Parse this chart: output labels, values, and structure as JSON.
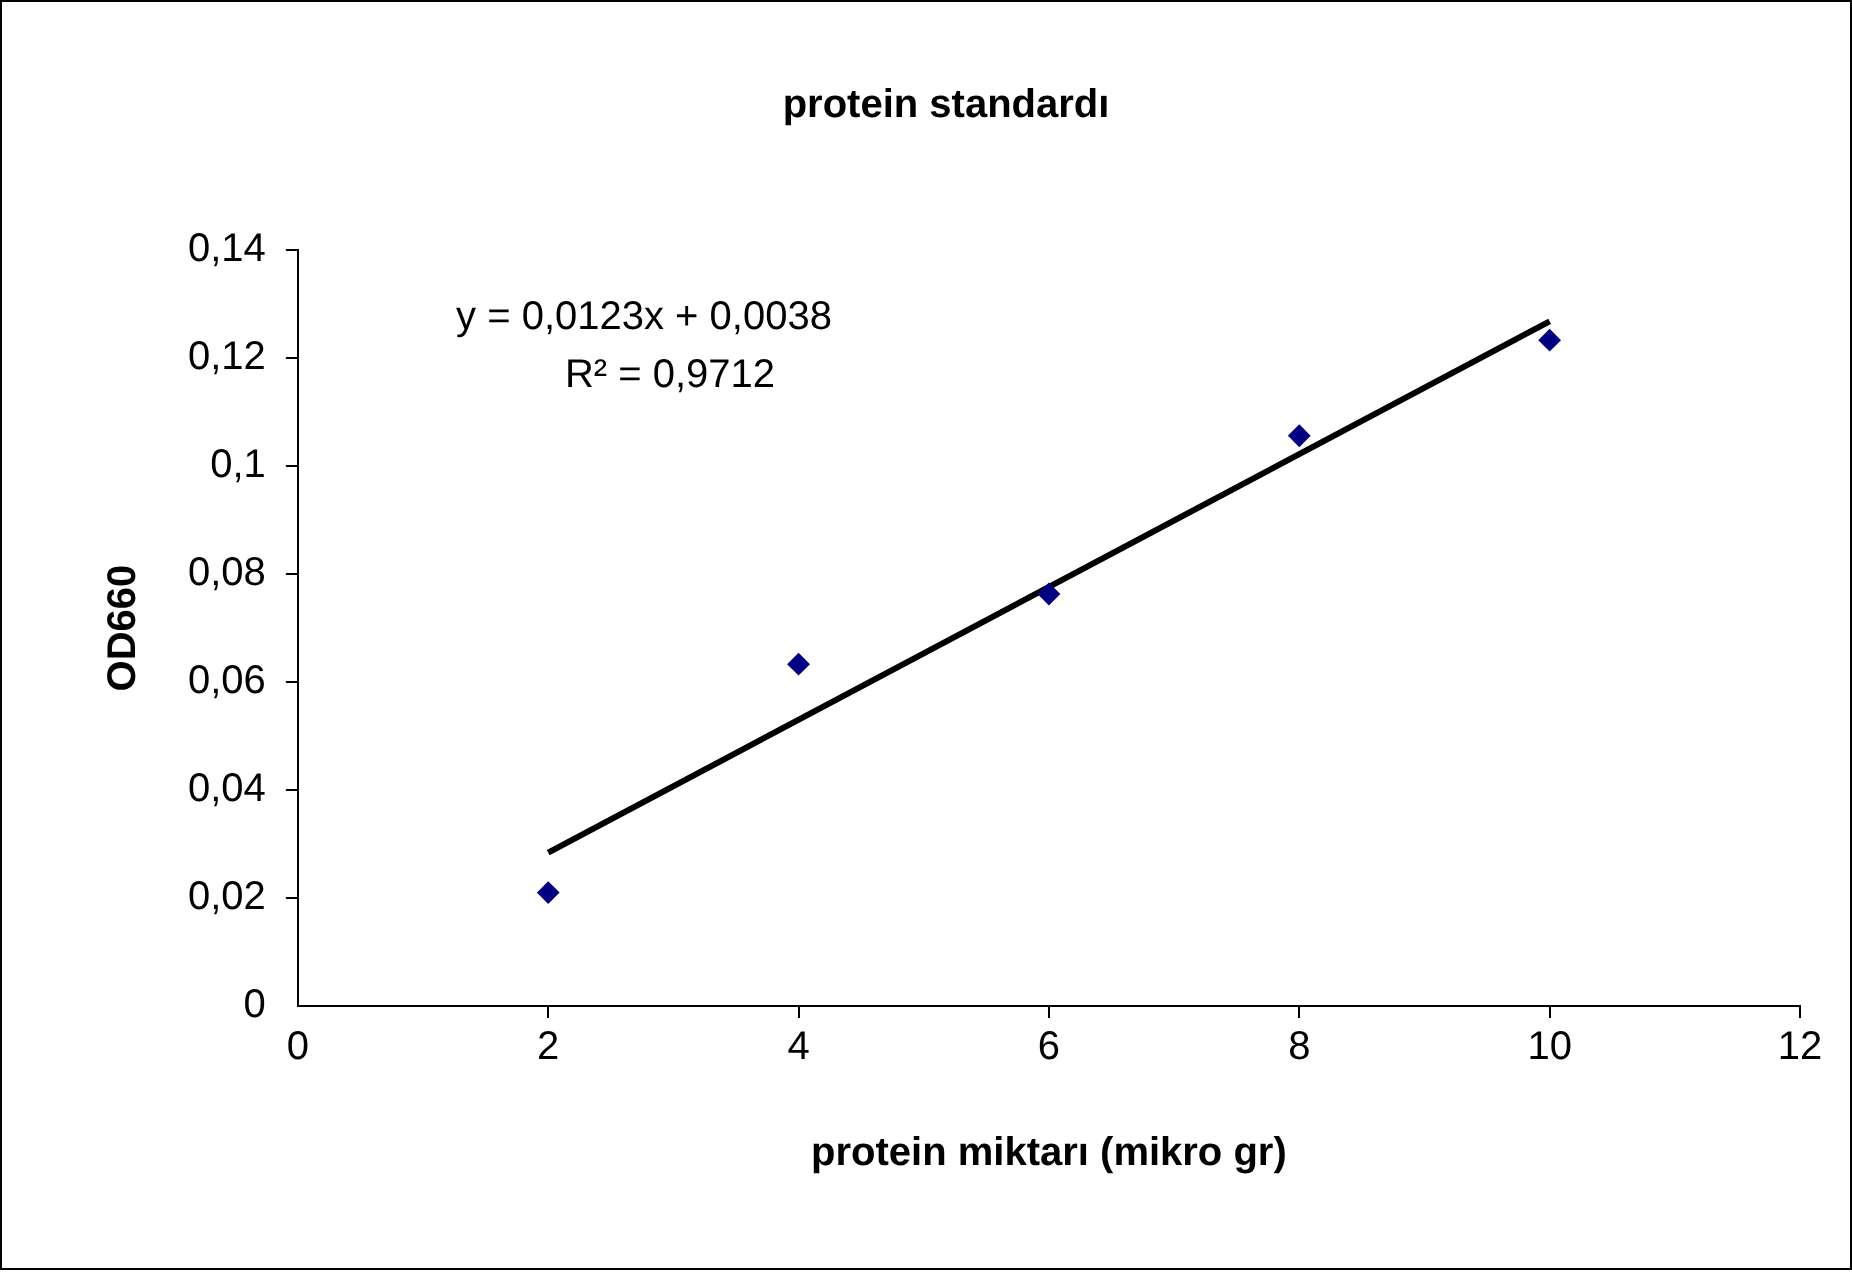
{
  "chart_data": {
    "type": "scatter",
    "title": "protein standardı",
    "xlabel": "protein miktarı (mikro gr)",
    "ylabel": "OD660",
    "series": [
      {
        "type": "scatter",
        "color": "#000080",
        "x": [
          2,
          4,
          6,
          8,
          10
        ],
        "values": [
          0.021,
          0.0633,
          0.0763,
          0.1056,
          0.1233
        ],
        "marker": "diamond"
      },
      {
        "type": "line",
        "color": "#000000",
        "x": [
          2,
          10
        ],
        "values": [
          0.0284,
          0.1268
        ],
        "marker": "none"
      }
    ],
    "xlim": [
      0,
      12
    ],
    "xticks": [
      0,
      2,
      4,
      6,
      8,
      10,
      12
    ],
    "ylim": [
      0,
      0.14
    ],
    "yticks": [
      {
        "value": 0,
        "label": "0"
      },
      {
        "value": 0.02,
        "label": "0,02"
      },
      {
        "value": 0.04,
        "label": "0,04"
      },
      {
        "value": 0.06,
        "label": "0,06"
      },
      {
        "value": 0.08,
        "label": "0,08"
      },
      {
        "value": 0.1,
        "label": "0,1"
      },
      {
        "value": 0.12,
        "label": "0,12"
      },
      {
        "value": 0.14,
        "label": "0,14"
      }
    ],
    "annotations": [
      "y = 0,0123x + 0,0038",
      "R² = 0,9712"
    ],
    "grid": false,
    "legend": false
  }
}
